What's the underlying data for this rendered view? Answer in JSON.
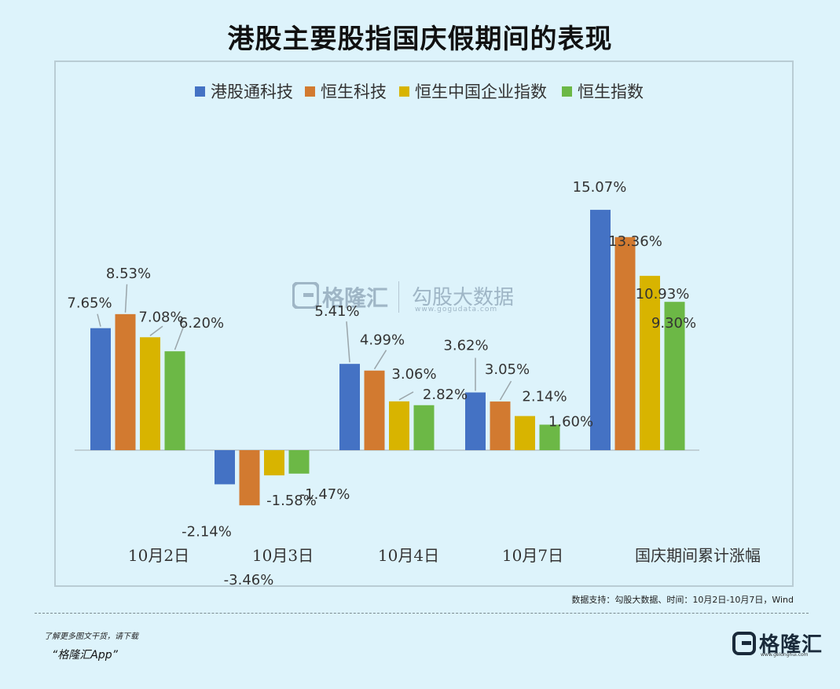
{
  "title": "港股主要股指国庆假期间的表现",
  "chart_data": {
    "type": "bar",
    "title": "港股主要股指国庆假期间的表现",
    "categories": [
      "10月2日",
      "10月3日",
      "10月4日",
      "10月7日",
      "国庆期间累计涨幅"
    ],
    "series": [
      {
        "name": "港股通科技",
        "color": "#4472c4",
        "values": [
          7.65,
          -2.14,
          5.41,
          3.62,
          15.07
        ]
      },
      {
        "name": "恒生科技",
        "color": "#d27a30",
        "values": [
          8.53,
          -3.46,
          4.99,
          3.05,
          13.36
        ]
      },
      {
        "name": "恒生中国企业指数",
        "color": "#d8b400",
        "values": [
          7.08,
          -1.58,
          3.06,
          2.14,
          10.93
        ]
      },
      {
        "name": "恒生指数",
        "color": "#6cb846",
        "values": [
          6.2,
          -1.47,
          2.82,
          1.6,
          9.3
        ]
      }
    ],
    "data_labels": [
      [
        "7.65%",
        "8.53%",
        "7.08%",
        "6.20%"
      ],
      [
        "-2.14%",
        "-3.46%",
        "-1.58%",
        "-1.47%"
      ],
      [
        "5.41%",
        "4.99%",
        "3.06%",
        "2.82%"
      ],
      [
        "3.62%",
        "3.05%",
        "2.14%",
        "1.60%"
      ],
      [
        "15.07%",
        "13.36%",
        "10.93%",
        "9.30%"
      ]
    ],
    "xlabel": "",
    "ylabel": "",
    "ylim": [
      -3.5,
      15.5
    ],
    "grid": false,
    "legend": "top-center"
  },
  "source": "数据支持：勾股大数据、时间：10月2日-10月7日，Wind",
  "footer": {
    "note": "了解更多图文干货，请下载",
    "app": "“格隆汇App”"
  },
  "brand": {
    "name": "格隆汇",
    "url": "www.gelonghui.com"
  },
  "watermark": {
    "brand": "格隆汇",
    "product": "勾股大数据",
    "url": "www.gogudata.com"
  }
}
